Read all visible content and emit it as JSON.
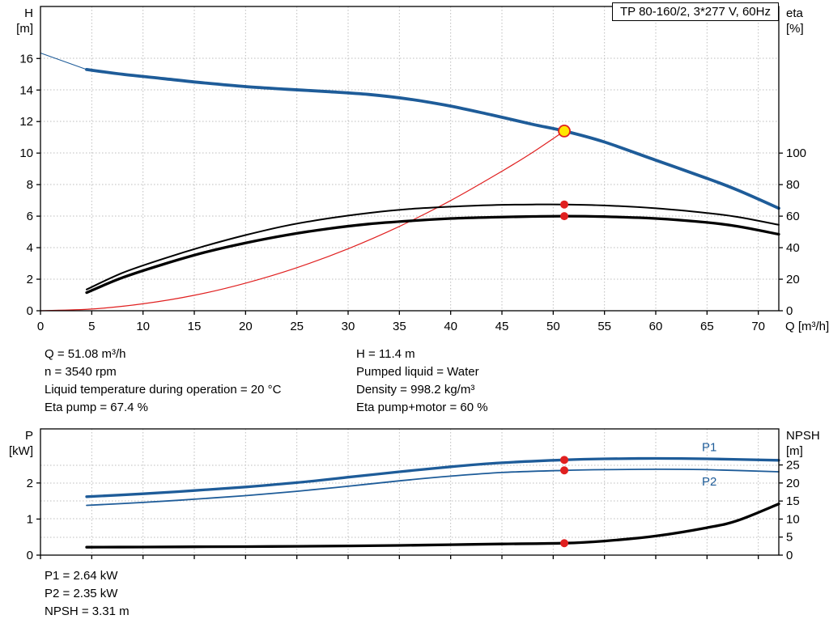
{
  "title_box": "TP 80-160/2, 3*277 V, 60Hz",
  "info_top": {
    "left": [
      "Q = 51.08 m³/h",
      "n = 3540 rpm",
      "Liquid temperature during operation = 20 °C",
      "Eta pump = 67.4 %"
    ],
    "right": [
      "H = 11.4 m",
      "Pumped liquid = Water",
      "Density = 998.2 kg/m³",
      "Eta pump+motor = 60 %"
    ]
  },
  "info_bottom": [
    "P1 = 2.64 kW",
    "P2 = 2.35 kW",
    "NPSH = 3.31 m"
  ],
  "colors": {
    "curve_blue": "#1e5c99",
    "curve_red": "#e02020",
    "curve_black": "#000000",
    "marker_red": "#e02020",
    "marker_yellow": "#ffe600",
    "grid": "#bdbdbd",
    "axis": "#000000"
  },
  "chart_data": [
    {
      "type": "line",
      "name": "qh-eta-chart",
      "x_label": "Q [m³/h]",
      "y_left_label": [
        "H",
        "[m]"
      ],
      "y_right_label": [
        "eta",
        "[%]"
      ],
      "x_range": [
        0,
        72
      ],
      "x_ticks": [
        0,
        5,
        10,
        15,
        20,
        25,
        30,
        35,
        40,
        45,
        50,
        55,
        60,
        65,
        70
      ],
      "show_x_tick_labels": true,
      "y_left_range": [
        0,
        19.3
      ],
      "y_left_ticks": [
        0,
        2,
        4,
        6,
        8,
        10,
        12,
        14,
        16
      ],
      "y_right_range": [
        0,
        193
      ],
      "y_right_ticks": [
        0,
        20,
        40,
        60,
        80,
        100
      ],
      "grid": true,
      "series": [
        {
          "name": "system-curve",
          "color": "#e02020",
          "width": 1.2,
          "axis": "left",
          "points": [
            [
              0,
              0
            ],
            [
              5,
              0.11
            ],
            [
              10,
              0.44
            ],
            [
              15,
              0.98
            ],
            [
              20,
              1.75
            ],
            [
              25,
              2.73
            ],
            [
              30,
              3.93
            ],
            [
              35,
              5.35
            ],
            [
              40,
              6.99
            ],
            [
              45,
              8.85
            ],
            [
              48,
              10.05
            ],
            [
              51.08,
              11.4
            ]
          ]
        },
        {
          "name": "h-curve-leadin",
          "color": "#1e5c99",
          "width": 1,
          "axis": "left",
          "points": [
            [
              0,
              16.35
            ],
            [
              4.5,
              15.3
            ]
          ]
        },
        {
          "name": "h-curve",
          "color": "#1e5c99",
          "width": 3.8,
          "axis": "left",
          "points": [
            [
              4.5,
              15.3
            ],
            [
              8,
              15.0
            ],
            [
              12,
              14.72
            ],
            [
              16,
              14.45
            ],
            [
              20,
              14.22
            ],
            [
              24,
              14.05
            ],
            [
              28,
              13.9
            ],
            [
              32,
              13.72
            ],
            [
              36,
              13.42
            ],
            [
              40,
              12.98
            ],
            [
              44,
              12.42
            ],
            [
              48,
              11.82
            ],
            [
              51.08,
              11.4
            ],
            [
              55,
              10.7
            ],
            [
              60,
              9.55
            ],
            [
              65,
              8.4
            ],
            [
              68,
              7.65
            ],
            [
              72,
              6.5
            ]
          ]
        },
        {
          "name": "eta-pump-curve",
          "color": "#000000",
          "width": 2,
          "axis": "right",
          "points": [
            [
              4.5,
              13.5
            ],
            [
              8,
              24
            ],
            [
              12,
              33
            ],
            [
              16,
              41
            ],
            [
              20,
              48
            ],
            [
              24,
              54
            ],
            [
              28,
              58.5
            ],
            [
              32,
              62
            ],
            [
              36,
              64.5
            ],
            [
              40,
              66
            ],
            [
              44,
              67
            ],
            [
              48,
              67.4
            ],
            [
              51.08,
              67.4
            ],
            [
              55,
              66.8
            ],
            [
              60,
              65
            ],
            [
              65,
              62
            ],
            [
              68,
              59.5
            ],
            [
              72,
              54.5
            ]
          ]
        },
        {
          "name": "eta-pump-motor-curve",
          "color": "#000000",
          "width": 3.3,
          "axis": "right",
          "points": [
            [
              4.5,
              11.5
            ],
            [
              8,
              21
            ],
            [
              12,
              29.5
            ],
            [
              16,
              37
            ],
            [
              20,
              43
            ],
            [
              24,
              48
            ],
            [
              28,
              52
            ],
            [
              32,
              55
            ],
            [
              36,
              57
            ],
            [
              40,
              58.5
            ],
            [
              44,
              59.3
            ],
            [
              48,
              59.8
            ],
            [
              51.08,
              60
            ],
            [
              55,
              59.7
            ],
            [
              60,
              58.5
            ],
            [
              65,
              56
            ],
            [
              68,
              53.5
            ],
            [
              72,
              48.5
            ]
          ]
        }
      ],
      "markers": [
        {
          "name": "duty-point-qh",
          "x": 51.08,
          "y": 11.4,
          "axis": "left",
          "r": 7,
          "fill": "#ffe600",
          "stroke": "#e02020",
          "stroke_width": 1.8
        },
        {
          "name": "duty-point-eta-pump",
          "x": 51.08,
          "y": 67.4,
          "axis": "right",
          "r": 5,
          "fill": "#e02020"
        },
        {
          "name": "duty-point-eta-pump-motor",
          "x": 51.08,
          "y": 60,
          "axis": "right",
          "r": 5,
          "fill": "#e02020"
        }
      ],
      "annotations": []
    },
    {
      "type": "line",
      "name": "power-npsh-chart",
      "x_label": "",
      "y_left_label": [
        "P",
        "[kW]"
      ],
      "y_right_label": [
        "NPSH",
        "[m]"
      ],
      "x_range": [
        0,
        72
      ],
      "x_ticks": [
        0,
        5,
        10,
        15,
        20,
        25,
        30,
        35,
        40,
        45,
        50,
        55,
        60,
        65,
        70
      ],
      "show_x_tick_labels": false,
      "y_left_range": [
        0,
        3.5
      ],
      "y_left_ticks": [
        0,
        1,
        2
      ],
      "y_right_range": [
        0,
        35
      ],
      "y_right_ticks": [
        0,
        5,
        10,
        15,
        20,
        25
      ],
      "grid": true,
      "series": [
        {
          "name": "p1-curve",
          "color": "#1e5c99",
          "width": 3.3,
          "axis": "left",
          "points": [
            [
              4.5,
              1.62
            ],
            [
              10,
              1.7
            ],
            [
              15,
              1.79
            ],
            [
              20,
              1.89
            ],
            [
              25,
              2.01
            ],
            [
              30,
              2.16
            ],
            [
              35,
              2.31
            ],
            [
              40,
              2.45
            ],
            [
              45,
              2.56
            ],
            [
              51.08,
              2.64
            ],
            [
              55,
              2.67
            ],
            [
              60,
              2.68
            ],
            [
              65,
              2.67
            ],
            [
              72,
              2.63
            ]
          ]
        },
        {
          "name": "p2-curve",
          "color": "#1e5c99",
          "width": 1.8,
          "axis": "left",
          "points": [
            [
              4.5,
              1.38
            ],
            [
              10,
              1.46
            ],
            [
              15,
              1.55
            ],
            [
              20,
              1.65
            ],
            [
              25,
              1.77
            ],
            [
              30,
              1.91
            ],
            [
              35,
              2.06
            ],
            [
              40,
              2.19
            ],
            [
              45,
              2.29
            ],
            [
              51.08,
              2.35
            ],
            [
              55,
              2.37
            ],
            [
              60,
              2.38
            ],
            [
              65,
              2.37
            ],
            [
              72,
              2.31
            ]
          ]
        },
        {
          "name": "npsh-curve",
          "color": "#000000",
          "width": 3.3,
          "axis": "right",
          "points": [
            [
              4.5,
              2.2
            ],
            [
              10,
              2.25
            ],
            [
              15,
              2.3
            ],
            [
              20,
              2.35
            ],
            [
              25,
              2.45
            ],
            [
              30,
              2.55
            ],
            [
              35,
              2.7
            ],
            [
              40,
              2.9
            ],
            [
              45,
              3.1
            ],
            [
              51.08,
              3.31
            ],
            [
              55,
              3.9
            ],
            [
              60,
              5.3
            ],
            [
              65,
              7.6
            ],
            [
              68,
              9.6
            ],
            [
              72,
              14.2
            ]
          ]
        }
      ],
      "markers": [
        {
          "name": "duty-point-p1",
          "x": 51.08,
          "y": 2.64,
          "axis": "left",
          "r": 5,
          "fill": "#e02020"
        },
        {
          "name": "duty-point-p2",
          "x": 51.08,
          "y": 2.35,
          "axis": "left",
          "r": 5,
          "fill": "#e02020"
        },
        {
          "name": "duty-point-npsh",
          "x": 51.08,
          "y": 3.31,
          "axis": "right",
          "r": 5,
          "fill": "#e02020"
        }
      ],
      "annotations": [
        {
          "text": "P1",
          "x": 64.5,
          "y": 2.88,
          "axis": "left",
          "color": "#1e5c99"
        },
        {
          "text": "P2",
          "x": 64.5,
          "y": 1.93,
          "axis": "left",
          "color": "#1e5c99"
        }
      ]
    }
  ]
}
